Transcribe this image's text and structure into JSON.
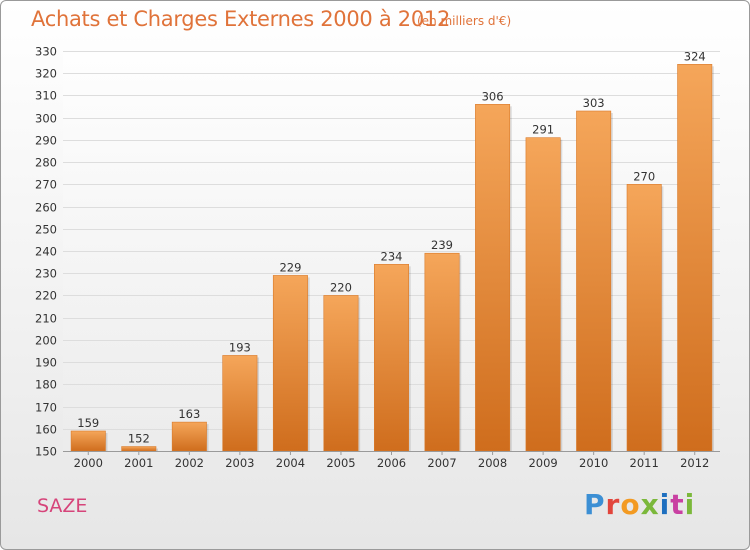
{
  "header": {
    "title": "Achats et Charges Externes 2000 à 2012",
    "subtitle": "(en milliers d'€)"
  },
  "commune": "SAZE",
  "brand": {
    "logo_text": "Proxiti",
    "colors": [
      "#3c8fd4",
      "#e2453c",
      "#f39a22",
      "#7bb83b",
      "#1e6fbf",
      "#c940a2"
    ]
  },
  "colors": {
    "bar_top": "#f5a65a",
    "bar_bottom": "#cf6d1d",
    "grid": "#dddddd",
    "axis_text": "#333333",
    "title": "#e0733a"
  },
  "chart_data": {
    "type": "bar",
    "title": "Achats et Charges Externes 2000 à 2012",
    "subtitle": "(en milliers d'€)",
    "categories": [
      "2000",
      "2001",
      "2002",
      "2003",
      "2004",
      "2005",
      "2006",
      "2007",
      "2008",
      "2009",
      "2010",
      "2011",
      "2012"
    ],
    "values": [
      159,
      152,
      163,
      193,
      229,
      220,
      234,
      239,
      306,
      291,
      303,
      270,
      324
    ],
    "ylim": [
      150,
      330
    ],
    "ytick_step": 10,
    "grid": true,
    "legend": "none"
  }
}
